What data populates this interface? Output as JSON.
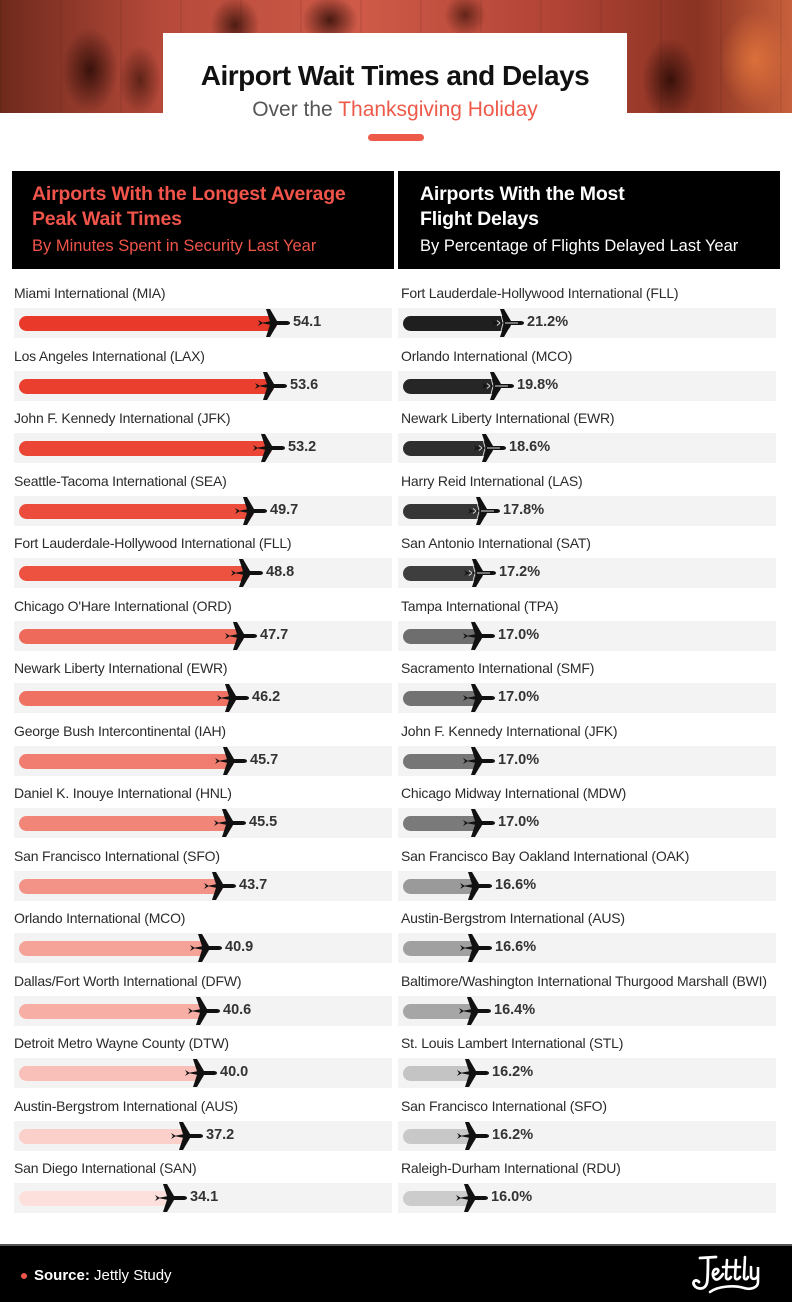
{
  "header": {
    "title": "Airport Wait Times and Delays",
    "subtitle_prefix": "Over the ",
    "subtitle_highlight": "Thanksgiving Holiday"
  },
  "colors": {
    "accent": "#ee5a4a",
    "header_bg": "#000000",
    "track_bg": "#f3f3f3"
  },
  "left_panel": {
    "title_line1": "Airports With the Longest Average",
    "title_line2": "Peak Wait Times",
    "subtitle": "By Minutes Spent in Security Last Year",
    "unit": "minutes"
  },
  "right_panel": {
    "title_line1": "Airports With the Most",
    "title_line2": "Flight Delays",
    "subtitle": "By Percentage of Flights Delayed Last Year",
    "unit": "percent"
  },
  "footer": {
    "source_label": "Source:",
    "source_value": " Jettly Study",
    "logo_text": "Jettly"
  },
  "icons": {
    "bar_end": "airplane-icon",
    "bullet": "dot-icon"
  },
  "chart_data": [
    {
      "type": "bar",
      "orientation": "horizontal",
      "title": "Airports With the Longest Average Peak Wait Times",
      "subtitle": "By Minutes Spent in Security Last Year",
      "xlabel": "",
      "ylabel": "",
      "grid": false,
      "legend": null,
      "categories": [
        "Miami International (MIA)",
        "Los Angeles International (LAX)",
        "John F. Kennedy International (JFK)",
        "Seattle-Tacoma International (SEA)",
        "Fort Lauderdale-Hollywood International (FLL)",
        "Chicago O'Hare International (ORD)",
        "Newark Liberty International (EWR)",
        "George Bush Intercontinental (IAH)",
        "Daniel K. Inouye International (HNL)",
        "San Francisco International (SFO)",
        "Orlando International (MCO)",
        "Dallas/Fort Worth International (DFW)",
        "Detroit Metro Wayne County (DTW)",
        "Austin-Bergstrom International (AUS)",
        "San Diego International (SAN)"
      ],
      "values": [
        54.1,
        53.6,
        53.2,
        49.7,
        48.8,
        47.7,
        46.2,
        45.7,
        45.5,
        43.7,
        40.9,
        40.6,
        40.0,
        37.2,
        34.1
      ],
      "labels": [
        "54.1",
        "53.6",
        "53.2",
        "49.7",
        "48.8",
        "47.7",
        "46.2",
        "45.7",
        "45.5",
        "43.7",
        "40.9",
        "40.6",
        "40.0",
        "37.2",
        "34.1"
      ],
      "bar_colors": [
        "#e8392a",
        "#ea3f2f",
        "#eb4535",
        "#ec4c3b",
        "#ed5241",
        "#ee6a5a",
        "#ef7163",
        "#f07d70",
        "#f18578",
        "#f39388",
        "#f5a399",
        "#f7aea5",
        "#f9c0b9",
        "#fbcfca",
        "#fde0dc"
      ]
    },
    {
      "type": "bar",
      "orientation": "horizontal",
      "title": "Airports With the Most Flight Delays",
      "subtitle": "By Percentage of Flights Delayed Last Year",
      "xlabel": "",
      "ylabel": "",
      "grid": false,
      "legend": null,
      "categories": [
        "Fort Lauderdale-Hollywood International (FLL)",
        "Orlando International (MCO)",
        "Newark Liberty International (EWR)",
        "Harry Reid International (LAS)",
        "San Antonio International (SAT)",
        "Tampa International (TPA)",
        "Sacramento International (SMF)",
        "John F. Kennedy International (JFK)",
        "Chicago Midway International (MDW)",
        "San Francisco Bay Oakland International (OAK)",
        "Austin-Bergstrom International (AUS)",
        "Baltimore/Washington International Thurgood Marshall (BWI)",
        "St. Louis Lambert International (STL)",
        "San Francisco International (SFO)",
        "Raleigh-Durham International (RDU)"
      ],
      "values": [
        21.2,
        19.8,
        18.6,
        17.8,
        17.2,
        17.0,
        17.0,
        17.0,
        17.0,
        16.6,
        16.6,
        16.4,
        16.2,
        16.2,
        16.0
      ],
      "labels": [
        "21.2%",
        "19.8%",
        "18.6%",
        "17.8%",
        "17.2%",
        "17.0%",
        "17.0%",
        "17.0%",
        "17.0%",
        "16.6%",
        "16.6%",
        "16.4%",
        "16.2%",
        "16.2%",
        "16.0%"
      ],
      "bar_colors": [
        "#1f1f1f",
        "#262626",
        "#2e2e2e",
        "#363636",
        "#3e3e3e",
        "#6e6e6e",
        "#727272",
        "#767676",
        "#7a7a7a",
        "#9a9a9a",
        "#a0a0a0",
        "#a6a6a6",
        "#c4c4c4",
        "#c8c8c8",
        "#cccccc"
      ]
    }
  ]
}
